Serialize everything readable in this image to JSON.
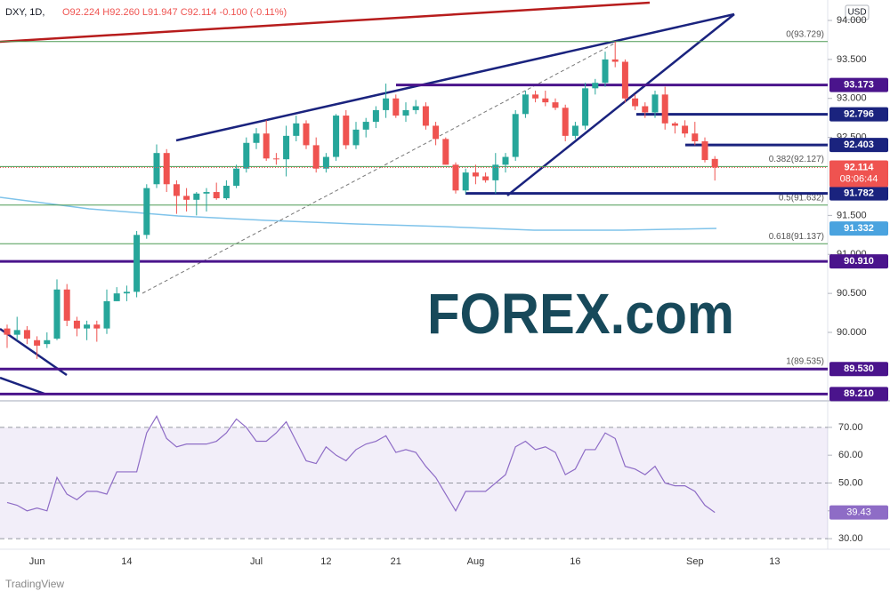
{
  "chart_data": [
    {
      "type": "candlestick",
      "title": "DXY, 1D,",
      "subtitle": "O92.224 H92.260 L91.947 C92.114 -0.100 (-0.11%)",
      "currency": "USD",
      "watermark": "FOREX.com",
      "footer": "TradingView",
      "categories": [
        null,
        null,
        null,
        "Jun",
        null,
        null,
        null,
        null,
        null,
        null,
        null,
        null,
        "14",
        null,
        null,
        null,
        null,
        null,
        null,
        null,
        null,
        null,
        null,
        null,
        null,
        "Jul",
        null,
        null,
        null,
        null,
        null,
        null,
        "12",
        null,
        null,
        null,
        null,
        null,
        null,
        "21",
        null,
        null,
        null,
        null,
        null,
        null,
        null,
        "Aug",
        null,
        null,
        null,
        null,
        null,
        null,
        null,
        null,
        null,
        "16",
        null,
        null,
        null,
        null,
        null,
        null,
        null,
        null,
        null,
        null,
        null,
        "Sep",
        null,
        null,
        null,
        null,
        null,
        null,
        null,
        "13"
      ],
      "open": [
        90.05,
        89.97,
        90.03,
        89.9,
        89.85,
        89.92,
        90.55,
        90.15,
        90.05,
        90.1,
        90.05,
        90.4,
        90.5,
        90.52,
        91.25,
        91.9,
        92.3,
        91.9,
        91.75,
        91.7,
        91.78,
        91.8,
        91.72,
        91.88,
        92.1,
        92.43,
        92.55,
        92.23,
        92.22,
        92.52,
        92.68,
        92.4,
        92.1,
        92.25,
        92.78,
        92.4,
        92.6,
        92.7,
        92.85,
        93.0,
        92.78,
        92.85,
        92.9,
        92.65,
        92.48,
        92.15,
        91.82,
        92.05,
        92.0,
        91.95,
        92.15,
        92.25,
        92.8,
        93.05,
        93.0,
        92.95,
        92.88,
        92.52,
        92.65,
        93.13,
        93.2,
        93.5,
        93.47,
        93.0,
        92.9,
        92.82,
        93.05,
        92.68,
        92.65,
        92.55,
        92.45,
        92.224,
        null,
        null,
        null,
        null,
        null,
        null
      ],
      "high": [
        90.1,
        90.2,
        90.08,
        89.95,
        90.0,
        90.68,
        90.62,
        90.2,
        90.15,
        90.15,
        90.55,
        90.58,
        90.6,
        91.3,
        91.9,
        92.41,
        92.35,
        91.95,
        91.85,
        91.8,
        91.85,
        91.92,
        91.95,
        92.15,
        92.5,
        92.62,
        92.72,
        92.3,
        92.65,
        92.78,
        92.72,
        92.5,
        92.3,
        92.8,
        92.85,
        92.7,
        92.75,
        92.9,
        93.19,
        93.05,
        92.95,
        92.98,
        92.95,
        92.7,
        92.5,
        92.18,
        92.1,
        92.15,
        92.05,
        92.3,
        92.3,
        92.85,
        93.1,
        93.1,
        93.1,
        93.0,
        92.92,
        92.7,
        93.2,
        93.25,
        93.6,
        93.729,
        93.5,
        93.05,
        92.95,
        93.1,
        93.15,
        92.7,
        92.72,
        92.7,
        92.5,
        92.26,
        null,
        null,
        null,
        null,
        null,
        null
      ],
      "low": [
        89.8,
        89.9,
        89.85,
        89.66,
        89.8,
        89.9,
        90.08,
        89.95,
        89.9,
        89.88,
        89.98,
        90.4,
        90.4,
        90.45,
        91.2,
        91.85,
        91.8,
        91.52,
        91.55,
        91.5,
        91.55,
        91.7,
        91.7,
        91.85,
        92.05,
        92.35,
        92.2,
        92.15,
        92.0,
        92.45,
        92.35,
        92.05,
        92.05,
        92.2,
        92.35,
        92.35,
        92.5,
        92.62,
        92.75,
        92.75,
        92.7,
        92.8,
        92.6,
        92.4,
        92.15,
        91.78,
        91.78,
        91.9,
        91.92,
        91.78,
        92.05,
        92.2,
        92.75,
        92.95,
        92.9,
        92.85,
        92.45,
        92.48,
        92.6,
        93.05,
        93.15,
        93.4,
        92.95,
        92.85,
        92.75,
        92.75,
        92.6,
        92.55,
        92.5,
        92.4,
        92.18,
        91.947,
        null,
        null,
        null,
        null,
        null,
        null
      ],
      "close": [
        89.97,
        90.03,
        89.92,
        89.83,
        89.9,
        90.55,
        90.15,
        90.05,
        90.1,
        90.05,
        90.4,
        90.5,
        90.52,
        91.25,
        91.85,
        92.3,
        91.9,
        91.75,
        91.7,
        91.78,
        91.8,
        91.72,
        91.88,
        92.1,
        92.43,
        92.55,
        92.23,
        92.22,
        92.52,
        92.68,
        92.4,
        92.1,
        92.25,
        92.78,
        92.4,
        92.6,
        92.7,
        92.85,
        93.0,
        92.78,
        92.85,
        92.9,
        92.65,
        92.48,
        92.15,
        91.82,
        92.05,
        92.0,
        91.95,
        92.15,
        92.25,
        92.8,
        93.05,
        93.0,
        92.95,
        92.88,
        92.52,
        92.65,
        93.13,
        93.2,
        93.5,
        93.47,
        93.0,
        92.9,
        92.82,
        93.05,
        92.68,
        92.65,
        92.55,
        92.45,
        92.21,
        92.114,
        null,
        null,
        null,
        null,
        null,
        null
      ],
      "up_color": "#26a69a",
      "down_color": "#ef5350",
      "ylim": [
        89.134,
        94.262
      ],
      "yticks": [
        {
          "value": 90,
          "label": "90.000"
        },
        {
          "value": 90.5,
          "label": "90.500"
        },
        {
          "value": 91,
          "label": "91.000"
        },
        {
          "value": 91.5,
          "label": "91.500"
        },
        {
          "value": 92.5,
          "label": "92.500"
        },
        {
          "value": 93,
          "label": "93.000"
        },
        {
          "value": 93.5,
          "label": "93.500"
        },
        {
          "value": 94,
          "label": "94.000"
        }
      ],
      "levels": [
        {
          "value": 93.173,
          "label": "93.173",
          "color": "#4a148c"
        },
        {
          "value": 92.796,
          "label": "92.796",
          "color": "#1a237e"
        },
        {
          "value": 92.403,
          "label": "92.403",
          "color": "#1a237e"
        },
        {
          "value": 91.782,
          "label": "91.782",
          "color": "#1a237e"
        },
        {
          "value": 90.91,
          "label": "90.910",
          "color": "#4a148c"
        },
        {
          "value": 89.53,
          "label": "89.530",
          "color": "#4a148c"
        },
        {
          "value": 89.21,
          "label": "89.210",
          "color": "#4a148c"
        }
      ],
      "fib_levels": [
        {
          "value": 93.729,
          "label": "0(93.729)"
        },
        {
          "value": 92.127,
          "label": "0.382(92.127)"
        },
        {
          "value": 91.632,
          "label": "0.5(91.632)"
        },
        {
          "value": 91.137,
          "label": "0.618(91.137)"
        },
        {
          "value": 89.535,
          "label": "1(89.535)"
        }
      ],
      "fib_color": "#4c9a52",
      "last_price": {
        "value": 92.114,
        "label": "92.114",
        "countdown": "08:06:44",
        "color": "#ef5350"
      },
      "ma_label": {
        "value": 91.332,
        "label": "91.332",
        "color": "#4aa3df"
      }
    },
    {
      "type": "line",
      "series": [
        {
          "values": [
            43,
            42,
            40,
            41,
            40,
            52,
            46,
            44,
            47,
            47,
            46,
            54,
            54,
            54,
            68,
            74,
            66,
            63,
            64,
            64,
            64,
            65,
            68,
            73,
            70,
            65,
            65,
            68,
            72,
            65,
            58,
            57,
            63,
            60,
            58,
            62,
            64,
            65,
            67,
            61,
            62,
            61,
            56,
            52,
            46,
            40,
            47,
            47,
            47,
            50,
            53,
            63,
            65,
            62,
            63,
            61,
            53,
            55,
            62,
            62,
            68,
            66,
            56,
            55,
            53,
            56,
            50,
            49,
            49,
            47,
            42,
            39.43
          ],
          "color": "#8e6cc6"
        }
      ],
      "ylim": [
        26.2,
        78.9
      ],
      "yticks": [
        {
          "value": 30,
          "label": "30.00"
        },
        {
          "value": 40,
          "label": "40.00"
        },
        {
          "value": 50,
          "label": "50.00"
        },
        {
          "value": 60,
          "label": "60.00"
        },
        {
          "value": 70,
          "label": "70.00"
        }
      ],
      "dashed_levels": [
        70,
        50,
        30
      ],
      "last_label": {
        "value": 39.43,
        "label": "39.43"
      }
    }
  ]
}
